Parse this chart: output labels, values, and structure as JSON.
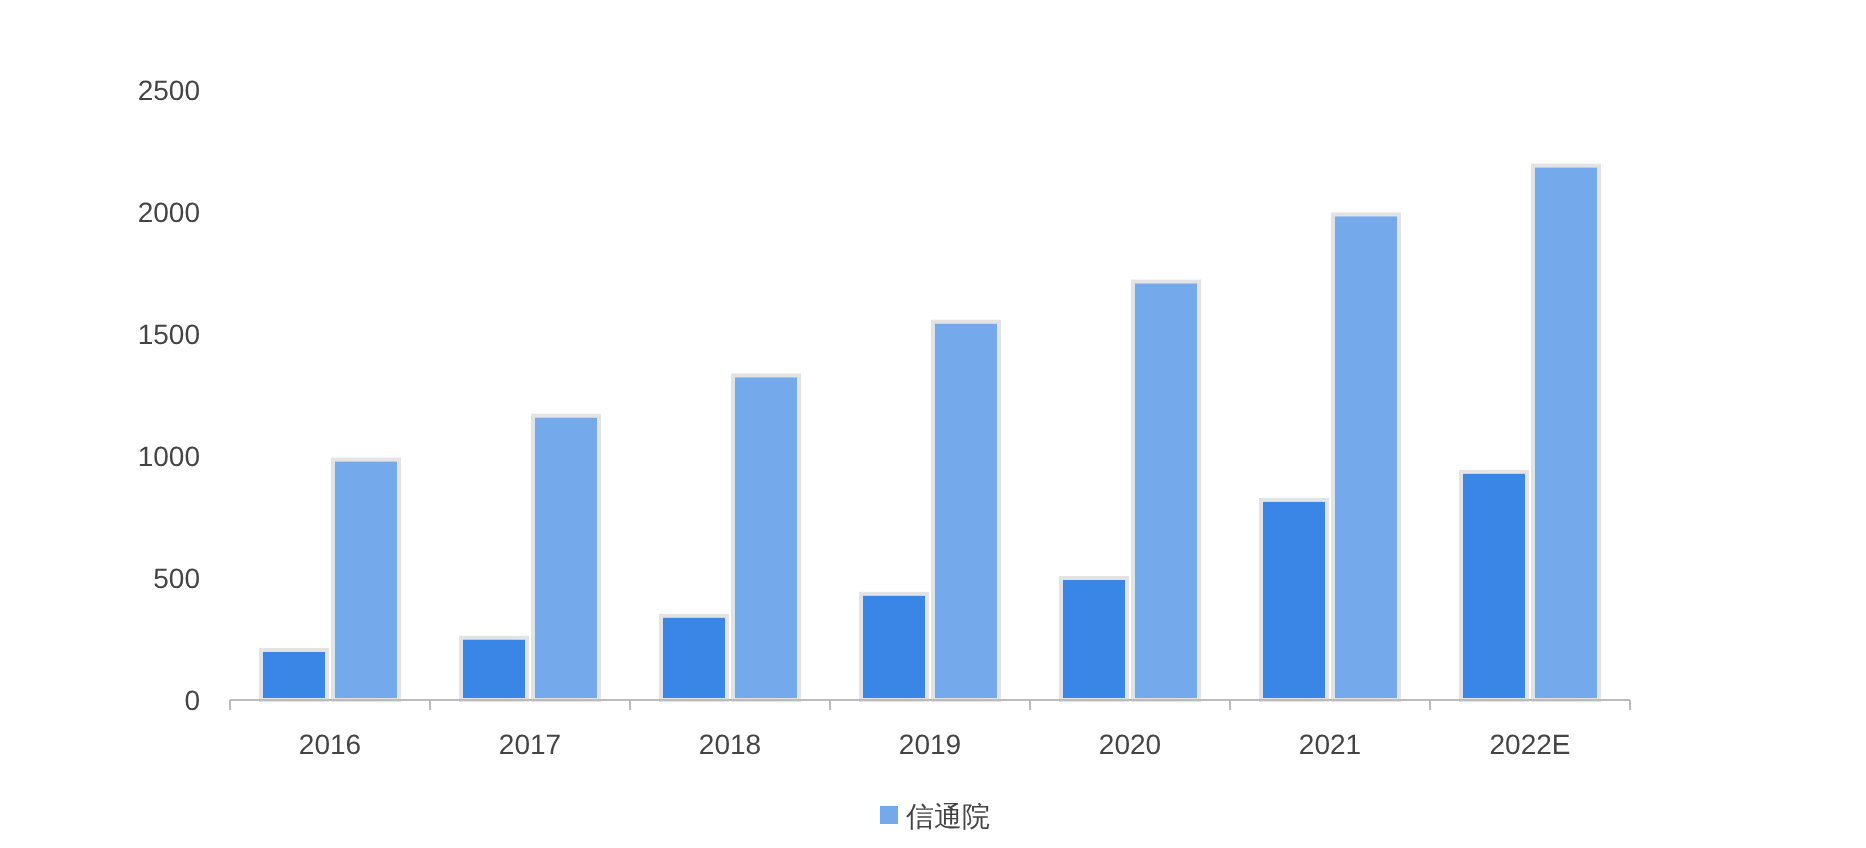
{
  "chart_data": {
    "type": "bar",
    "categories": [
      "2016",
      "2017",
      "2018",
      "2019",
      "2020",
      "2021",
      "2022E"
    ],
    "series": [
      {
        "color": "#3a86e6",
        "values": [
          205,
          255,
          345,
          435,
          500,
          820,
          935
        ]
      },
      {
        "name": "信通院",
        "color": "#74a9ec",
        "values": [
          985,
          1165,
          1330,
          1550,
          1715,
          1990,
          2190
        ]
      }
    ],
    "ylim": [
      0,
      2500
    ],
    "yticks": [
      0,
      500,
      1000,
      1500,
      2000,
      2500
    ],
    "grid": false,
    "legend": "bottom"
  }
}
